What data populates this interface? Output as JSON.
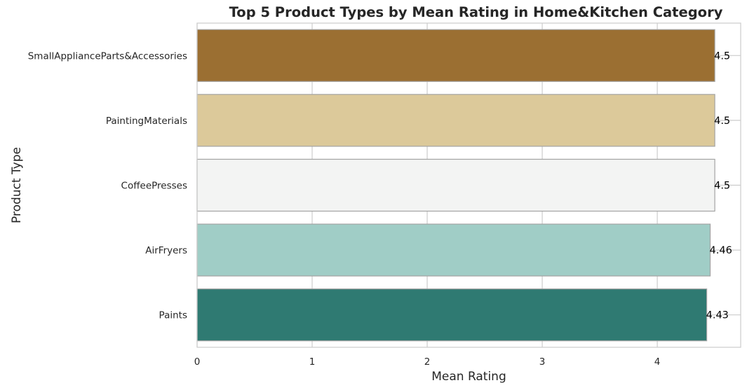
{
  "chart_data": {
    "type": "bar",
    "orientation": "horizontal",
    "title": "Top 5 Product Types by Mean Rating in Home&Kitchen Category",
    "xlabel": "Mean Rating",
    "ylabel": "Product Type",
    "categories": [
      "SmallApplianceParts&Accessories",
      "PaintingMaterials",
      "CoffeePresses",
      "AirFryers",
      "Paints"
    ],
    "values": [
      4.5,
      4.5,
      4.5,
      4.46,
      4.43
    ],
    "data_labels": [
      "4.5",
      "4.5",
      "4.5",
      "4.46",
      "4.43"
    ],
    "colors": [
      "#9b6f32",
      "#dcc99a",
      "#f3f4f3",
      "#a0cdc6",
      "#2f7a72"
    ],
    "xlim": [
      0,
      4.725
    ],
    "xticks": [
      0,
      1,
      2,
      3,
      4
    ],
    "xtick_labels": [
      "0",
      "1",
      "2",
      "3",
      "4"
    ],
    "grid": true,
    "legend": "none"
  }
}
